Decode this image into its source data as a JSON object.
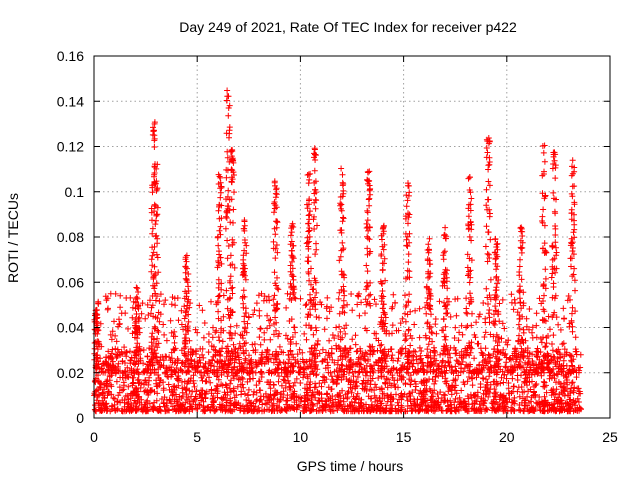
{
  "chart_data": {
    "type": "scatter",
    "title": "Day 249 of 2021, Rate Of TEC Index for receiver p422",
    "xlabel": "GPS time / hours",
    "ylabel": "ROTI / TECUs",
    "xlim": [
      0,
      25
    ],
    "ylim": [
      0,
      0.16
    ],
    "xticks": [
      0,
      5,
      10,
      15,
      20,
      25
    ],
    "xtick_labels": [
      "0",
      "5",
      "10",
      "15",
      "20",
      "25"
    ],
    "yticks": [
      0,
      0.02,
      0.04,
      0.06,
      0.08,
      0.1,
      0.12,
      0.14,
      0.16
    ],
    "ytick_labels": [
      "0",
      "0.02",
      "0.04",
      "0.06",
      "0.08",
      "0.1",
      "0.12",
      "0.14",
      "0.16"
    ],
    "grid": true,
    "marker": "+",
    "color": "#ff0000",
    "data_range_hours": [
      0,
      23.6
    ],
    "peaks": [
      {
        "x": 0.1,
        "y": 0.048
      },
      {
        "x": 2.1,
        "y": 0.06
      },
      {
        "x": 2.9,
        "y": 0.135
      },
      {
        "x": 3.0,
        "y": 0.115
      },
      {
        "x": 4.5,
        "y": 0.072
      },
      {
        "x": 6.1,
        "y": 0.114
      },
      {
        "x": 6.5,
        "y": 0.146
      },
      {
        "x": 6.7,
        "y": 0.12
      },
      {
        "x": 7.3,
        "y": 0.088
      },
      {
        "x": 8.8,
        "y": 0.106
      },
      {
        "x": 9.6,
        "y": 0.088
      },
      {
        "x": 10.4,
        "y": 0.108
      },
      {
        "x": 10.7,
        "y": 0.12
      },
      {
        "x": 12.0,
        "y": 0.111
      },
      {
        "x": 13.3,
        "y": 0.11
      },
      {
        "x": 14.0,
        "y": 0.085
      },
      {
        "x": 15.2,
        "y": 0.104
      },
      {
        "x": 16.2,
        "y": 0.08
      },
      {
        "x": 17.0,
        "y": 0.085
      },
      {
        "x": 18.2,
        "y": 0.107
      },
      {
        "x": 19.1,
        "y": 0.124
      },
      {
        "x": 19.5,
        "y": 0.08
      },
      {
        "x": 20.7,
        "y": 0.085
      },
      {
        "x": 21.8,
        "y": 0.121
      },
      {
        "x": 22.3,
        "y": 0.118
      },
      {
        "x": 23.2,
        "y": 0.116
      }
    ]
  }
}
